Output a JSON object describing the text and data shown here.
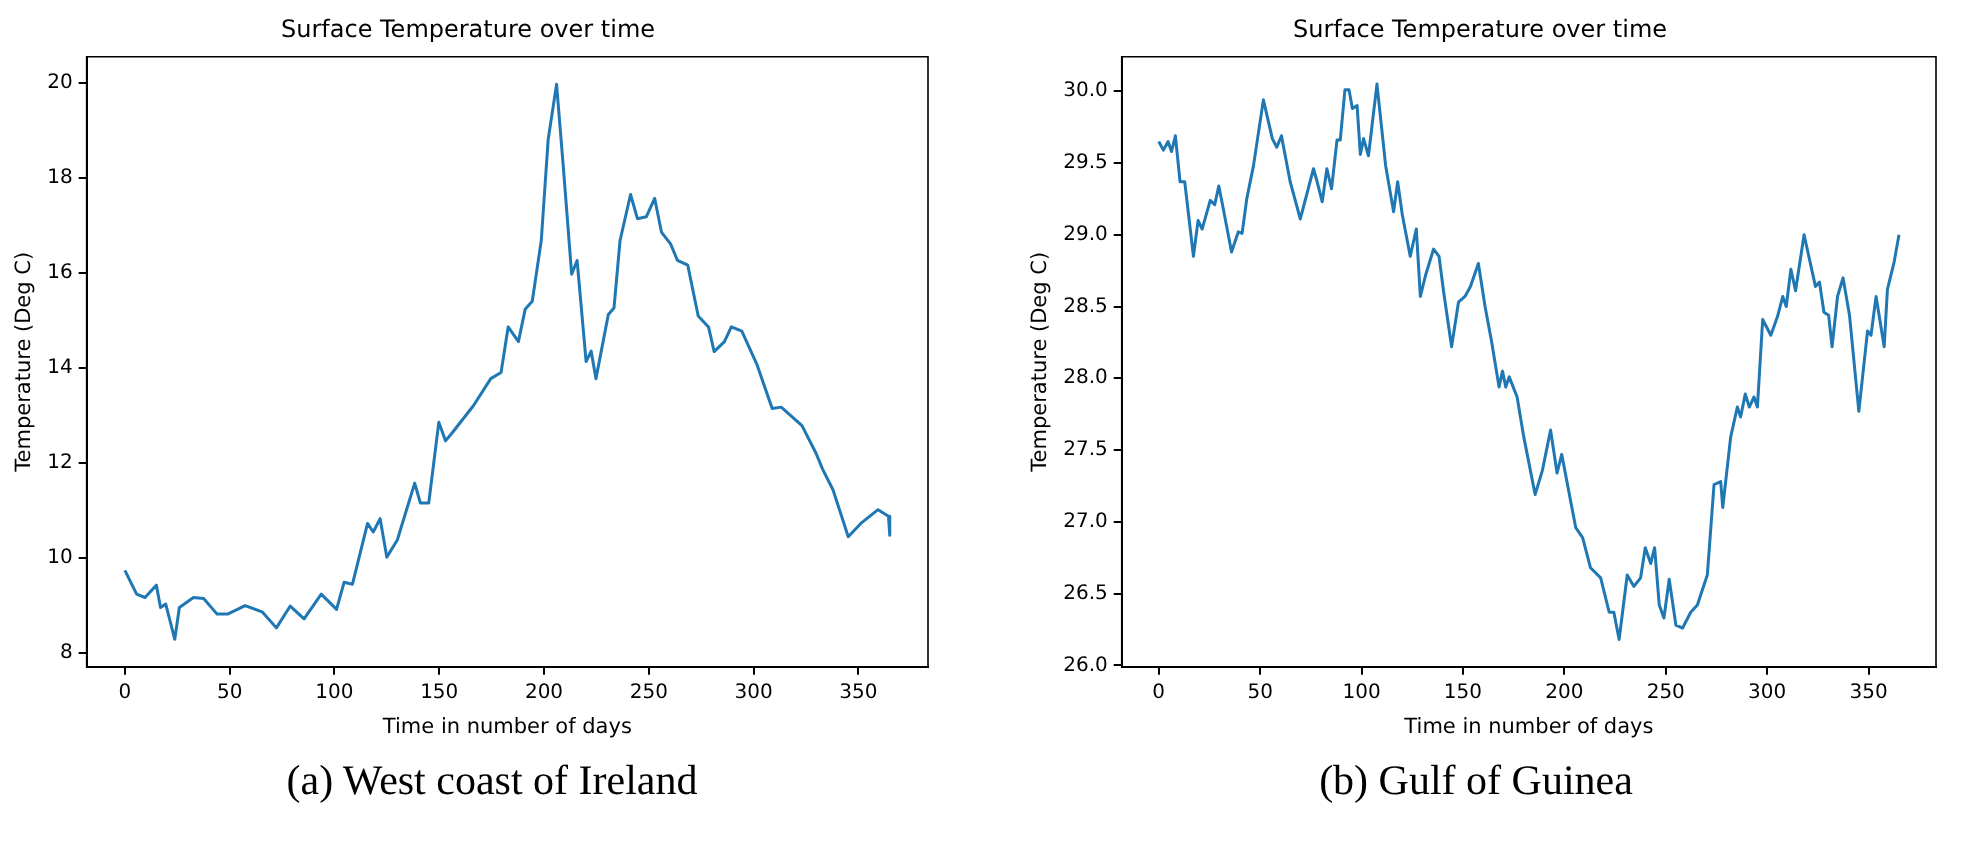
{
  "chart_data": [
    {
      "type": "line",
      "title": "Surface Temperature over time",
      "xlabel": "Time in number of days",
      "ylabel": "Temperature (Deg C)",
      "color": "#1f77b4",
      "grid": false,
      "legend": false,
      "x": [
        0,
        5.6,
        9.6,
        15,
        17,
        19.5,
        23.8,
        26,
        32.7,
        37.6,
        44,
        49,
        57.4,
        65.7,
        72.3,
        78.9,
        85.5,
        93.7,
        101,
        104.6,
        108.6,
        115.8,
        118.5,
        121.8,
        125,
        130,
        138.3,
        141,
        145,
        149.8,
        153,
        156.4,
        166.3,
        174.6,
        179.5,
        182.9,
        187.8,
        191,
        194.4,
        198.7,
        202,
        206,
        209.2,
        213.2,
        215.8,
        220.1,
        222.5,
        224.8,
        230.7,
        233.4,
        236.3,
        241.3,
        244.6,
        248.8,
        252.8,
        256.1,
        260.4,
        263.7,
        268.6,
        273.6,
        278.5,
        281.2,
        286.1,
        289.4,
        294.4,
        301.7,
        308.9,
        313.2,
        323.1,
        329.7,
        333,
        337.9,
        345.2,
        351.2,
        359.4,
        364.4,
        365
      ],
      "values": [
        9.73,
        9.23,
        9.16,
        9.42,
        8.95,
        9.02,
        8.28,
        8.95,
        9.16,
        9.14,
        8.81,
        8.81,
        8.99,
        8.85,
        8.52,
        8.98,
        8.71,
        9.23,
        8.91,
        9.48,
        9.44,
        10.72,
        10.54,
        10.82,
        10.01,
        10.37,
        11.57,
        11.15,
        11.15,
        12.85,
        12.46,
        12.64,
        13.2,
        13.77,
        13.9,
        14.86,
        14.55,
        15.23,
        15.4,
        16.68,
        18.81,
        19.97,
        18.24,
        15.97,
        16.26,
        14.13,
        14.35,
        13.77,
        15.12,
        15.26,
        16.68,
        17.65,
        17.14,
        17.18,
        17.57,
        16.85,
        16.61,
        16.26,
        16.16,
        15.09,
        14.86,
        14.34,
        14.55,
        14.86,
        14.77,
        14.06,
        13.14,
        13.17,
        12.78,
        12.21,
        11.86,
        11.43,
        10.44,
        10.72,
        11.01,
        10.87,
        10.47
      ],
      "xlim": [
        -18.25,
        383.25
      ],
      "ylim": [
        7.7,
        20.55
      ],
      "xticks": [
        0,
        50,
        100,
        150,
        200,
        250,
        300,
        350
      ],
      "yticks": [
        8,
        10,
        12,
        14,
        16,
        18,
        20
      ],
      "annotations": [
        "(a) West coast of Ireland"
      ]
    },
    {
      "type": "line",
      "title": "Surface Temperature over time",
      "xlabel": "Time in number of days",
      "ylabel": "Temperature (Deg C)",
      "color": "#1f77b4",
      "grid": false,
      "legend": false,
      "x": [
        0,
        2.3,
        4.6,
        6.3,
        8.2,
        10.5,
        12.8,
        17.1,
        19.4,
        21.4,
        25.4,
        27.6,
        29.6,
        31.3,
        35.9,
        39.2,
        41.1,
        43.4,
        46.7,
        51.6,
        56,
        58.2,
        60.5,
        64.8,
        69.8,
        76.3,
        77.9,
        80.6,
        82.9,
        85.2,
        87.9,
        89.5,
        91.8,
        93.8,
        95.5,
        97.8,
        99.4,
        101,
        103.4,
        107.6,
        111.9,
        115.8,
        117.8,
        120.1,
        124,
        127,
        129,
        131.6,
        135.5,
        138.2,
        140.5,
        144.4,
        147.8,
        151,
        153.7,
        157.6,
        160.9,
        164.2,
        167.8,
        169.5,
        171.1,
        172.8,
        176.7,
        180,
        185.6,
        189.2,
        193.2,
        196.4,
        198.7,
        205.6,
        209,
        212.9,
        217.9,
        222.1,
        224.4,
        227,
        231,
        234.3,
        237.6,
        239.9,
        242.6,
        244.5,
        246.8,
        249.1,
        251.7,
        255,
        258.3,
        262.3,
        265.6,
        267.2,
        270.5,
        273.8,
        277.1,
        278.1,
        282,
        285.3,
        286.9,
        289.2,
        291.2,
        293.5,
        295.2,
        297.8,
        301.8,
        305.1,
        307.7,
        309.4,
        311.7,
        314,
        318.2,
        323.8,
        325.8,
        328,
        330.3,
        332,
        334.7,
        337.4,
        340.6,
        345.2,
        349.5,
        351.2,
        353.7,
        357.7,
        359.3,
        362.6,
        365
      ],
      "values": [
        29.65,
        29.59,
        29.65,
        29.58,
        29.69,
        29.37,
        29.37,
        28.85,
        29.1,
        29.04,
        29.24,
        29.21,
        29.34,
        29.22,
        28.88,
        29.02,
        29.01,
        29.25,
        29.48,
        29.94,
        29.67,
        29.61,
        29.69,
        29.37,
        29.11,
        29.46,
        29.38,
        29.23,
        29.46,
        29.32,
        29.66,
        29.66,
        30.01,
        30.01,
        29.88,
        29.9,
        29.56,
        29.67,
        29.55,
        30.05,
        29.48,
        29.16,
        29.37,
        29.14,
        28.85,
        29.04,
        28.57,
        28.72,
        28.9,
        28.85,
        28.6,
        28.22,
        28.53,
        28.57,
        28.64,
        28.8,
        28.5,
        28.25,
        27.94,
        28.05,
        27.94,
        28.01,
        27.87,
        27.59,
        27.19,
        27.36,
        27.64,
        27.34,
        27.47,
        26.96,
        26.89,
        26.68,
        26.61,
        26.37,
        26.37,
        26.18,
        26.63,
        26.55,
        26.61,
        26.82,
        26.71,
        26.82,
        26.42,
        26.33,
        26.6,
        26.28,
        26.26,
        26.37,
        26.42,
        26.49,
        26.63,
        27.26,
        27.28,
        27.1,
        27.59,
        27.8,
        27.73,
        27.89,
        27.8,
        27.87,
        27.8,
        28.41,
        28.3,
        28.43,
        28.57,
        28.5,
        28.76,
        28.61,
        29.0,
        28.64,
        28.67,
        28.46,
        28.44,
        28.22,
        28.57,
        28.7,
        28.44,
        27.77,
        28.33,
        28.3,
        28.57,
        28.22,
        28.62,
        28.81,
        29.0
      ],
      "xlim": [
        -18.25,
        383.25
      ],
      "ylim": [
        25.99,
        30.24
      ],
      "xticks": [
        0,
        50,
        100,
        150,
        200,
        250,
        300,
        350
      ],
      "yticks": [
        {
          "value": 26,
          "label": "26.0"
        },
        {
          "value": 26.5,
          "label": "26.5"
        },
        {
          "value": 27,
          "label": "27.0"
        },
        {
          "value": 27.5,
          "label": "27.5"
        },
        {
          "value": 28,
          "label": "28.0"
        },
        {
          "value": 28.5,
          "label": "28.5"
        },
        {
          "value": 29,
          "label": "29.0"
        },
        {
          "value": 29.5,
          "label": "29.5"
        },
        {
          "value": 30,
          "label": "30.0"
        }
      ],
      "annotations": [
        "(b) Gulf of Guinea"
      ]
    }
  ]
}
